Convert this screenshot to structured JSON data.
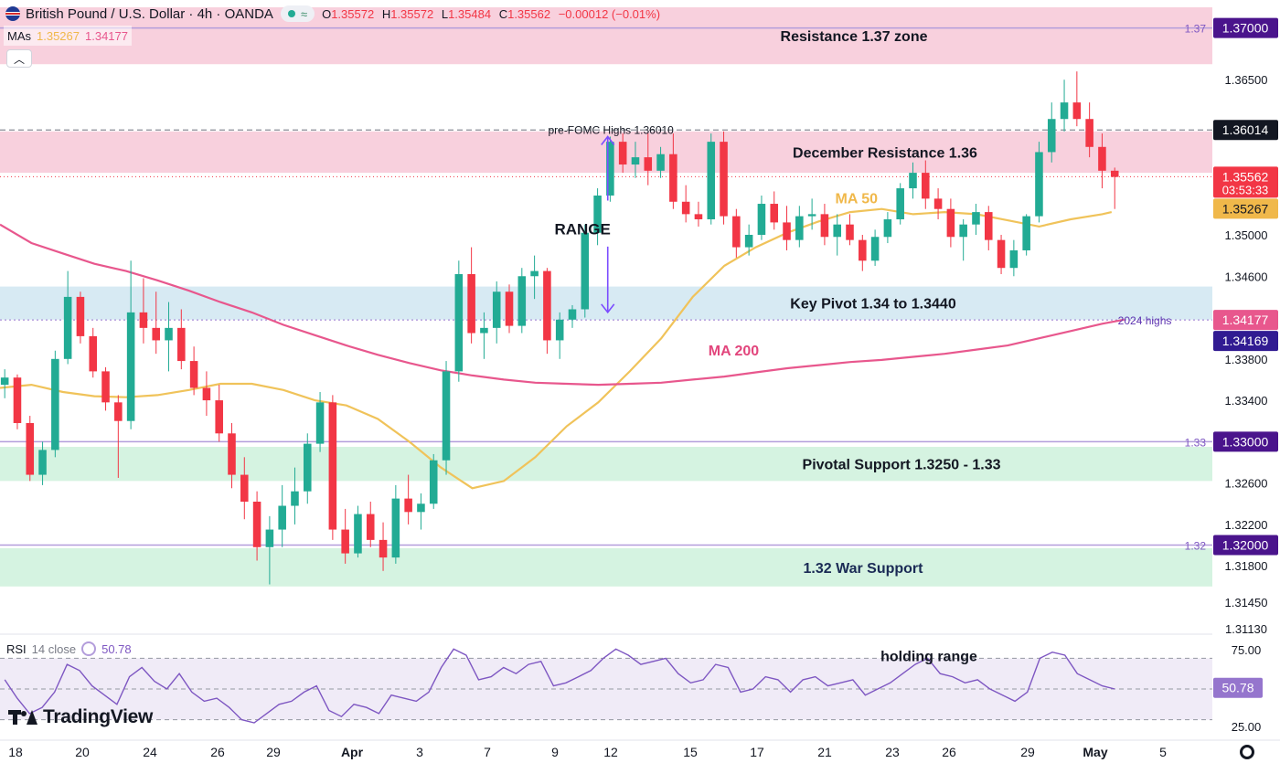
{
  "header": {
    "title": "British Pound / U.S. Dollar · 4h · OANDA",
    "tilde": "≈",
    "ohlc": [
      {
        "label": "O",
        "value": "1.35572"
      },
      {
        "label": "H",
        "value": "1.35572"
      },
      {
        "label": "L",
        "value": "1.35484"
      },
      {
        "label": "C",
        "value": "1.35562"
      }
    ],
    "change": "−0.00012 (−0.01%)"
  },
  "mas": {
    "label": "MAs",
    "ma50_value": "1.35267",
    "ma200_value": "1.34177"
  },
  "rsi": {
    "label": "RSI",
    "params": "14 close",
    "value": "50.78"
  },
  "branding": {
    "logo_text": "TradingView"
  },
  "icons": {
    "collapse": "chevron-up-icon",
    "settings": "gear-icon",
    "flag": "uk-us-flag-icon",
    "rsi_settings": "rsi-circle-icon"
  },
  "colors": {
    "up": "#22ab94",
    "down": "#f23645",
    "ma50": "#f0c35a",
    "ma200": "#e8578d",
    "rsi_line": "#7e57c2",
    "resistance_zone": "#f8d0dd",
    "support_zone": "#d5f3e1",
    "pivot_zone": "#d7eaf3"
  },
  "chart_data": {
    "type": "candlestick",
    "title": "British Pound / U.S. Dollar · 4h · OANDA",
    "x_ticks": [
      "18",
      "20",
      "24",
      "26",
      "29",
      "Apr",
      "3",
      "7",
      "9",
      "12",
      "15",
      "17",
      "21",
      "23",
      "26",
      "29",
      "May",
      "5"
    ],
    "y_ticks": [
      "1.36500",
      "1.35000",
      "1.34600",
      "1.33800",
      "1.33400",
      "1.32600",
      "1.32200",
      "1.31800",
      "1.31450",
      "1.31130"
    ],
    "ylim": [
      1.3113,
      1.372
    ],
    "price_labels": [
      {
        "value": 1.37,
        "text": "1.37000",
        "side_label": "1.37",
        "style": "purple"
      },
      {
        "value": 1.36014,
        "text": "1.36014",
        "style": "dark"
      },
      {
        "value": 1.35562,
        "text": "1.35562",
        "sub": "03:53:33",
        "style": "red"
      },
      {
        "value": 1.35267,
        "text": "1.35267",
        "style": "yellow"
      },
      {
        "value": 1.34177,
        "text": "1.34177",
        "style": "pink"
      },
      {
        "value": 1.34169,
        "text": "1.34169",
        "style": "navy"
      },
      {
        "value": 1.33,
        "text": "1.33000",
        "side_label": "1.33",
        "style": "purple"
      },
      {
        "value": 1.32,
        "text": "1.32000",
        "side_label": "1.32",
        "style": "purple"
      }
    ],
    "zones": [
      {
        "label": "Resistance 1.37 zone",
        "from": 1.3665,
        "to": 1.372,
        "color": "resistance"
      },
      {
        "label": "December Resistance 1.36",
        "from": 1.356,
        "to": 1.36,
        "color": "resistance"
      },
      {
        "label": "Key Pivot 1.34 to 1.3440",
        "from": 1.3418,
        "to": 1.345,
        "color": "pivot"
      },
      {
        "label": "Pivotal Support 1.3250 - 1.33",
        "from": 1.3262,
        "to": 1.3295,
        "color": "support"
      },
      {
        "label": "1.32 War Support",
        "from": 1.316,
        "to": 1.3197,
        "color": "support"
      }
    ],
    "horizontal_lines": [
      {
        "value": 1.37,
        "style": "solid-purple"
      },
      {
        "value": 1.36014,
        "style": "dashed-gray"
      },
      {
        "value": 1.35562,
        "style": "dotted-red"
      },
      {
        "value": 1.34177,
        "style": "dotted-purple"
      },
      {
        "value": 1.33,
        "style": "solid-purple"
      },
      {
        "value": 1.32,
        "style": "solid-purple"
      }
    ],
    "annotations": [
      {
        "text": "pre-FOMC Highs 1.36010",
        "x_day": 19.4,
        "y": 1.3602,
        "size": "small"
      },
      {
        "text": "RANGE",
        "x_day": 18.5,
        "y": 1.3505,
        "size": "large"
      },
      {
        "text": "MA 50",
        "x_day": 27.2,
        "y": 1.3535,
        "color": "ma50"
      },
      {
        "text": "MA 200",
        "x_day": 23.3,
        "y": 1.3388,
        "color": "ma200"
      },
      {
        "text": "2024 highs",
        "x_day": 35.5,
        "y": 1.3418,
        "color": "purple"
      },
      {
        "text": "holding range",
        "x_day": 29.5,
        "rsi_y": 71,
        "panel": "rsi"
      }
    ],
    "range_arrow": {
      "x_day": 19.3,
      "top": 1.3595,
      "bottom": 1.3425
    },
    "x_day_range": [
      0,
      38.5
    ],
    "series": [
      {
        "name": "MA 50",
        "type": "line",
        "color": "ma50",
        "points": [
          [
            0,
            1.3352
          ],
          [
            1,
            1.3355
          ],
          [
            2,
            1.3348
          ],
          [
            3,
            1.3344
          ],
          [
            4,
            1.3343
          ],
          [
            5,
            1.3345
          ],
          [
            6,
            1.335
          ],
          [
            7,
            1.3356
          ],
          [
            8,
            1.3356
          ],
          [
            9,
            1.335
          ],
          [
            10,
            1.334
          ],
          [
            11,
            1.3335
          ],
          [
            12,
            1.3322
          ],
          [
            13,
            1.33
          ],
          [
            14,
            1.3275
          ],
          [
            15,
            1.3255
          ],
          [
            16,
            1.3262
          ],
          [
            17,
            1.3285
          ],
          [
            18,
            1.3315
          ],
          [
            19,
            1.3338
          ],
          [
            20,
            1.3368
          ],
          [
            21,
            1.34
          ],
          [
            22,
            1.344
          ],
          [
            23,
            1.347
          ],
          [
            24,
            1.3488
          ],
          [
            25,
            1.3502
          ],
          [
            26,
            1.3513
          ],
          [
            27,
            1.3522
          ],
          [
            28,
            1.3525
          ],
          [
            29,
            1.352
          ],
          [
            30,
            1.3522
          ],
          [
            31,
            1.352
          ],
          [
            32,
            1.3514
          ],
          [
            33,
            1.3508
          ],
          [
            34,
            1.3515
          ],
          [
            35,
            1.352
          ],
          [
            35.3,
            1.3522
          ]
        ]
      },
      {
        "name": "MA 200",
        "type": "line",
        "color": "ma200",
        "points": [
          [
            0,
            1.351
          ],
          [
            1,
            1.3492
          ],
          [
            2,
            1.3482
          ],
          [
            3,
            1.3472
          ],
          [
            4,
            1.3465
          ],
          [
            5,
            1.3456
          ],
          [
            6,
            1.3446
          ],
          [
            7,
            1.3435
          ],
          [
            8,
            1.3425
          ],
          [
            9,
            1.3413
          ],
          [
            10,
            1.3403
          ],
          [
            11,
            1.3393
          ],
          [
            12,
            1.3384
          ],
          [
            13,
            1.3376
          ],
          [
            14,
            1.3369
          ],
          [
            15,
            1.3364
          ],
          [
            16,
            1.336
          ],
          [
            17,
            1.3357
          ],
          [
            18,
            1.3356
          ],
          [
            19,
            1.3355
          ],
          [
            20,
            1.3356
          ],
          [
            21,
            1.3357
          ],
          [
            22,
            1.336
          ],
          [
            23,
            1.3363
          ],
          [
            24,
            1.3367
          ],
          [
            25,
            1.3371
          ],
          [
            26,
            1.3374
          ],
          [
            27,
            1.3377
          ],
          [
            28,
            1.3379
          ],
          [
            29,
            1.3382
          ],
          [
            30,
            1.3385
          ],
          [
            31,
            1.3389
          ],
          [
            32,
            1.3393
          ],
          [
            33,
            1.34
          ],
          [
            34,
            1.3407
          ],
          [
            35,
            1.3414
          ],
          [
            35.7,
            1.3418
          ]
        ]
      },
      {
        "name": "price",
        "type": "candlestick",
        "ohlc": [
          [
            1.3355,
            1.337,
            1.3342,
            1.3362
          ],
          [
            1.3362,
            1.3365,
            1.3312,
            1.3318
          ],
          [
            1.3318,
            1.3325,
            1.3262,
            1.3268
          ],
          [
            1.3268,
            1.33,
            1.3258,
            1.3292
          ],
          [
            1.3292,
            1.3388,
            1.3285,
            1.338
          ],
          [
            1.338,
            1.3465,
            1.3375,
            1.344
          ],
          [
            1.344,
            1.3445,
            1.3395,
            1.3402
          ],
          [
            1.3402,
            1.341,
            1.3362,
            1.3368
          ],
          [
            1.3368,
            1.3372,
            1.333,
            1.3338
          ],
          [
            1.3338,
            1.3345,
            1.3265,
            1.332
          ],
          [
            1.332,
            1.3475,
            1.3312,
            1.3425
          ],
          [
            1.3425,
            1.3458,
            1.3395,
            1.341
          ],
          [
            1.341,
            1.3445,
            1.3385,
            1.3398
          ],
          [
            1.3398,
            1.3435,
            1.3368,
            1.341
          ],
          [
            1.341,
            1.3428,
            1.337,
            1.3378
          ],
          [
            1.3378,
            1.3392,
            1.3345,
            1.3352
          ],
          [
            1.3352,
            1.3368,
            1.3325,
            1.334
          ],
          [
            1.334,
            1.3355,
            1.33,
            1.3308
          ],
          [
            1.3308,
            1.3318,
            1.3255,
            1.3268
          ],
          [
            1.3268,
            1.3285,
            1.3225,
            1.3242
          ],
          [
            1.3242,
            1.3252,
            1.3185,
            1.3198
          ],
          [
            1.3198,
            1.3228,
            1.3162,
            1.3215
          ],
          [
            1.3215,
            1.3258,
            1.3198,
            1.3238
          ],
          [
            1.3238,
            1.3275,
            1.322,
            1.3252
          ],
          [
            1.3252,
            1.3308,
            1.324,
            1.3298
          ],
          [
            1.3298,
            1.3348,
            1.329,
            1.3338
          ],
          [
            1.3338,
            1.3345,
            1.3205,
            1.3215
          ],
          [
            1.3215,
            1.3235,
            1.3182,
            1.3192
          ],
          [
            1.3192,
            1.3238,
            1.3188,
            1.323
          ],
          [
            1.323,
            1.3242,
            1.3198,
            1.3205
          ],
          [
            1.3205,
            1.3222,
            1.3175,
            1.3188
          ],
          [
            1.3188,
            1.3258,
            1.3182,
            1.3245
          ],
          [
            1.3245,
            1.3268,
            1.322,
            1.3232
          ],
          [
            1.3232,
            1.325,
            1.3215,
            1.324
          ],
          [
            1.324,
            1.3288,
            1.3235,
            1.3282
          ],
          [
            1.3282,
            1.3378,
            1.3268,
            1.3368
          ],
          [
            1.3368,
            1.3475,
            1.3358,
            1.3462
          ],
          [
            1.3462,
            1.3488,
            1.3395,
            1.3405
          ],
          [
            1.3405,
            1.3425,
            1.338,
            1.341
          ],
          [
            1.341,
            1.3455,
            1.3395,
            1.3445
          ],
          [
            1.3445,
            1.3452,
            1.3405,
            1.3412
          ],
          [
            1.3412,
            1.3468,
            1.3405,
            1.346
          ],
          [
            1.346,
            1.348,
            1.3438,
            1.3465
          ],
          [
            1.3465,
            1.3468,
            1.3385,
            1.3398
          ],
          [
            1.3398,
            1.3425,
            1.338,
            1.3418
          ],
          [
            1.3418,
            1.3432,
            1.341,
            1.3428
          ],
          [
            1.3428,
            1.351,
            1.342,
            1.3502
          ],
          [
            1.3502,
            1.3545,
            1.349,
            1.3538
          ],
          [
            1.3538,
            1.3595,
            1.3532,
            1.359
          ],
          [
            1.359,
            1.3598,
            1.356,
            1.3568
          ],
          [
            1.3568,
            1.359,
            1.3555,
            1.3575
          ],
          [
            1.3575,
            1.3598,
            1.3548,
            1.3562
          ],
          [
            1.3562,
            1.3585,
            1.3555,
            1.3578
          ],
          [
            1.3578,
            1.3598,
            1.3525,
            1.3532
          ],
          [
            1.3532,
            1.3548,
            1.3512,
            1.352
          ],
          [
            1.352,
            1.3532,
            1.3508,
            1.3515
          ],
          [
            1.3515,
            1.3598,
            1.351,
            1.359
          ],
          [
            1.359,
            1.36,
            1.351,
            1.3518
          ],
          [
            1.3518,
            1.3525,
            1.3478,
            1.3488
          ],
          [
            1.3488,
            1.351,
            1.348,
            1.35
          ],
          [
            1.35,
            1.3538,
            1.3495,
            1.353
          ],
          [
            1.353,
            1.3542,
            1.3505,
            1.3512
          ],
          [
            1.3512,
            1.3528,
            1.3485,
            1.3495
          ],
          [
            1.3495,
            1.3528,
            1.3488,
            1.3518
          ],
          [
            1.3518,
            1.3535,
            1.3505,
            1.352
          ],
          [
            1.352,
            1.353,
            1.349,
            1.3498
          ],
          [
            1.3498,
            1.352,
            1.348,
            1.351
          ],
          [
            1.351,
            1.352,
            1.349,
            1.3495
          ],
          [
            1.3495,
            1.35,
            1.3465,
            1.3475
          ],
          [
            1.3475,
            1.3505,
            1.347,
            1.3498
          ],
          [
            1.3498,
            1.3522,
            1.3492,
            1.3515
          ],
          [
            1.3515,
            1.355,
            1.351,
            1.3545
          ],
          [
            1.3545,
            1.357,
            1.3535,
            1.356
          ],
          [
            1.356,
            1.3572,
            1.3525,
            1.3535
          ],
          [
            1.3535,
            1.3545,
            1.3515,
            1.3525
          ],
          [
            1.3525,
            1.3535,
            1.3488,
            1.3498
          ],
          [
            1.3498,
            1.3515,
            1.3475,
            1.351
          ],
          [
            1.351,
            1.353,
            1.35,
            1.3522
          ],
          [
            1.3522,
            1.3528,
            1.3485,
            1.3495
          ],
          [
            1.3495,
            1.35,
            1.3462,
            1.3468
          ],
          [
            1.3468,
            1.3495,
            1.346,
            1.3485
          ],
          [
            1.3485,
            1.352,
            1.348,
            1.3518
          ],
          [
            1.3518,
            1.359,
            1.3512,
            1.358
          ],
          [
            1.358,
            1.3628,
            1.357,
            1.3612
          ],
          [
            1.3612,
            1.365,
            1.36,
            1.3628
          ],
          [
            1.3628,
            1.3658,
            1.3605,
            1.3612
          ],
          [
            1.3612,
            1.3628,
            1.3575,
            1.3585
          ],
          [
            1.3585,
            1.3598,
            1.3545,
            1.3562
          ],
          [
            1.3562,
            1.3565,
            1.3525,
            1.3556
          ]
        ]
      },
      {
        "name": "RSI 14",
        "type": "line",
        "color": "rsi_line",
        "panel": "rsi",
        "ylim": [
          25,
          75
        ],
        "levels": [
          70,
          50,
          30
        ],
        "values": [
          56,
          44,
          34,
          38,
          48,
          66,
          62,
          52,
          46,
          40,
          58,
          64,
          55,
          50,
          60,
          48,
          42,
          44,
          38,
          30,
          28,
          34,
          40,
          42,
          48,
          52,
          36,
          32,
          40,
          38,
          34,
          46,
          44,
          42,
          48,
          64,
          76,
          72,
          56,
          58,
          64,
          60,
          66,
          68,
          52,
          54,
          58,
          62,
          70,
          76,
          72,
          66,
          68,
          70,
          60,
          54,
          56,
          66,
          64,
          48,
          50,
          58,
          56,
          48,
          56,
          58,
          52,
          54,
          56,
          46,
          50,
          54,
          60,
          66,
          70,
          60,
          58,
          54,
          56,
          50,
          46,
          42,
          48,
          70,
          74,
          72,
          60,
          56,
          52,
          50
        ]
      }
    ]
  }
}
